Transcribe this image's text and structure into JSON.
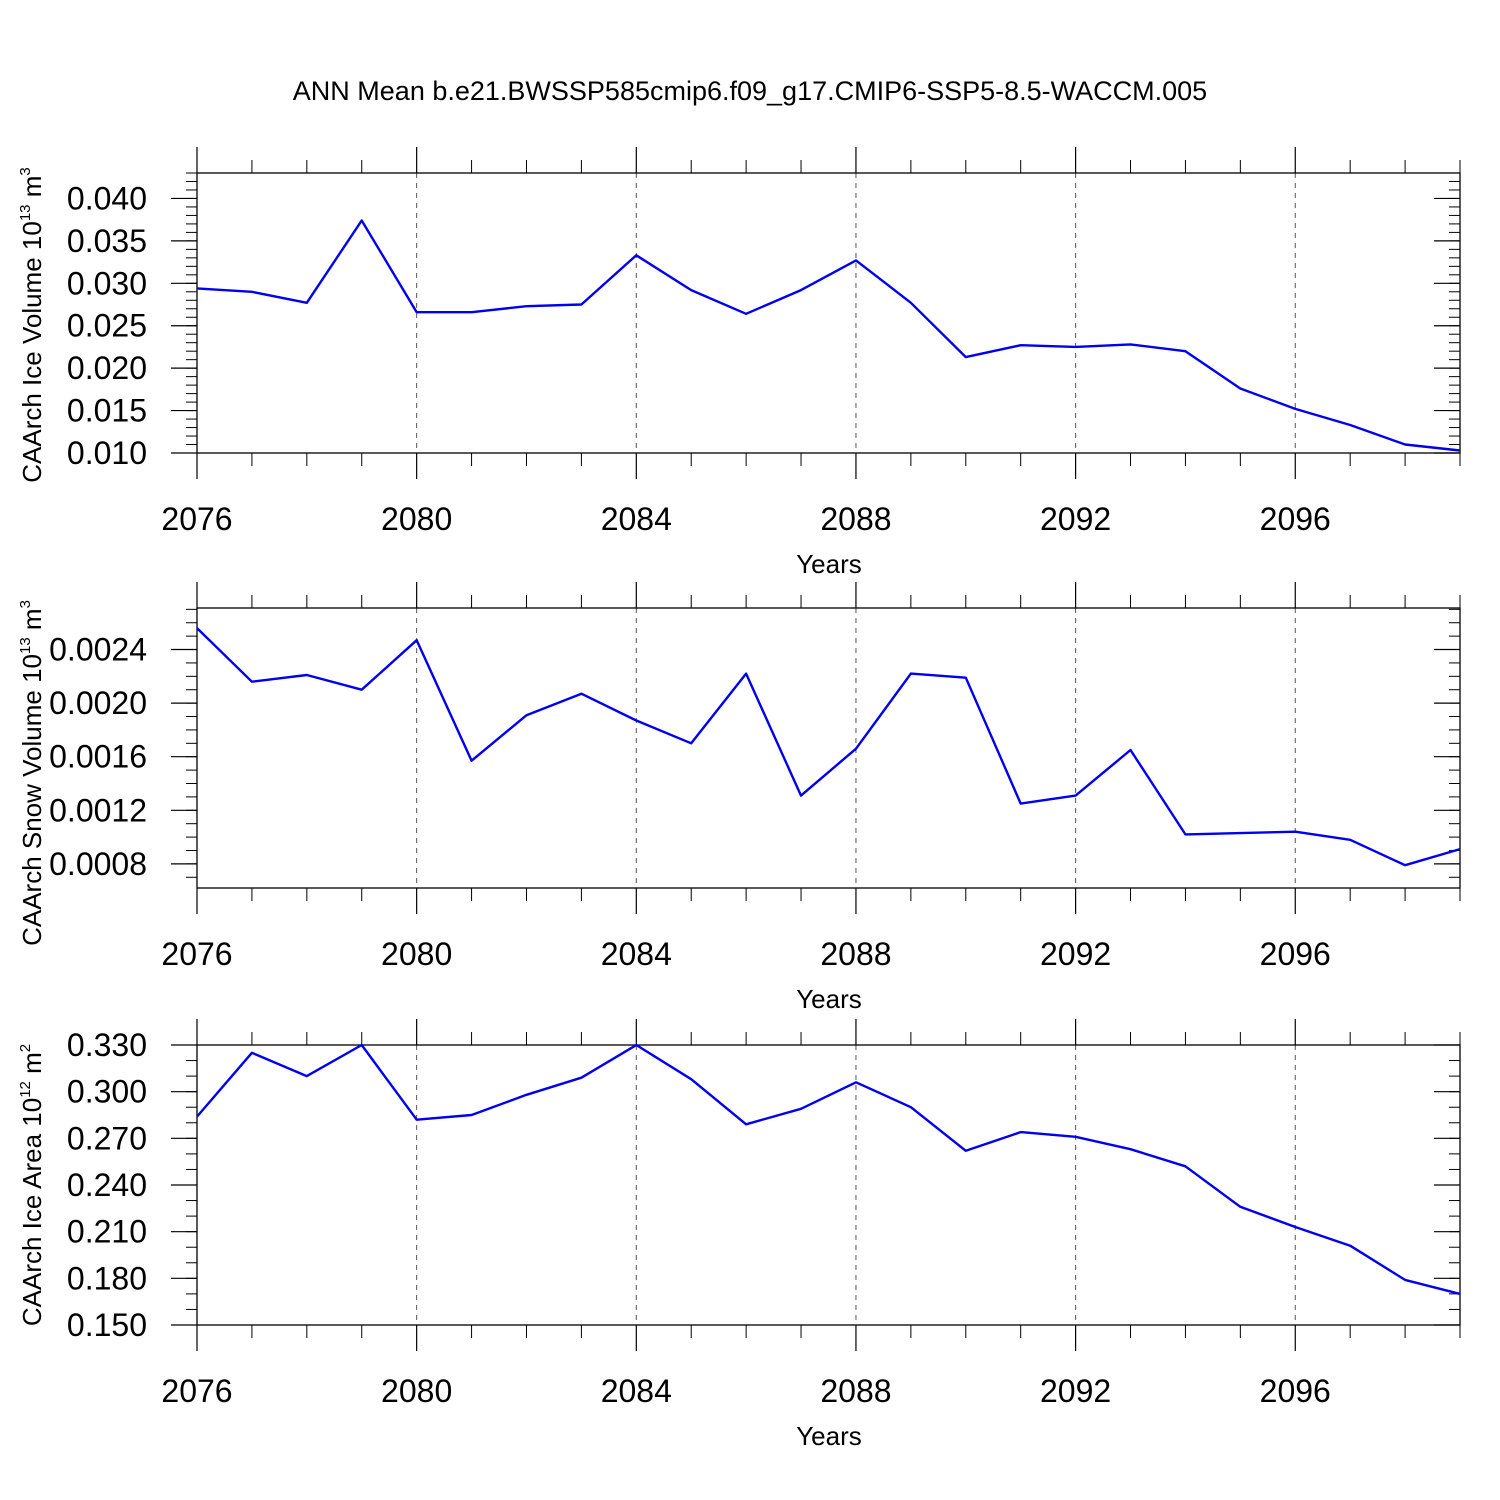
{
  "title": "ANN Mean b.e21.BWSSP585cmip6.f09_g17.CMIP6-SSP5-8.5-WACCM.005",
  "colors": {
    "series": "#0000ee",
    "axis": "#000000",
    "grid": "#555555"
  },
  "chart_data": [
    {
      "type": "line",
      "xlabel": "Years",
      "ylabel": {
        "base": "CAArch Ice Volume 10",
        "exp": "13",
        "unit": " m",
        "unit_exp": "3"
      },
      "x": [
        2076,
        2077,
        2078,
        2079,
        2080,
        2081,
        2082,
        2083,
        2084,
        2085,
        2086,
        2087,
        2088,
        2089,
        2090,
        2091,
        2092,
        2093,
        2094,
        2095,
        2096,
        2097,
        2098,
        2099
      ],
      "values": [
        0.0294,
        0.029,
        0.0277,
        0.0374,
        0.0266,
        0.0266,
        0.0273,
        0.0275,
        0.0333,
        0.0292,
        0.0264,
        0.0292,
        0.0327,
        0.0277,
        0.0213,
        0.0227,
        0.0225,
        0.0228,
        0.022,
        0.0176,
        0.0152,
        0.0133,
        0.011,
        0.0103
      ],
      "xlim": [
        2076,
        2099
      ],
      "ylim": [
        0.01,
        0.043
      ],
      "yticks": [
        0.01,
        0.015,
        0.02,
        0.025,
        0.03,
        0.035,
        0.04
      ],
      "ytick_labels": [
        "0.010",
        "0.015",
        "0.020",
        "0.025",
        "0.030",
        "0.035",
        "0.040"
      ],
      "xticks": [
        2076,
        2080,
        2084,
        2088,
        2092,
        2096
      ],
      "xtick_labels": [
        "2076",
        "2080",
        "2084",
        "2088",
        "2092",
        "2096"
      ],
      "grid": "vertical dashed at major x ticks"
    },
    {
      "type": "line",
      "xlabel": "Years",
      "ylabel": {
        "base": "CAArch Snow Volume 10",
        "exp": "13",
        "unit": " m",
        "unit_exp": "3"
      },
      "x": [
        2076,
        2077,
        2078,
        2079,
        2080,
        2081,
        2082,
        2083,
        2084,
        2085,
        2086,
        2087,
        2088,
        2089,
        2090,
        2091,
        2092,
        2093,
        2094,
        2095,
        2096,
        2097,
        2098,
        2099
      ],
      "values": [
        0.00256,
        0.00216,
        0.00221,
        0.0021,
        0.00247,
        0.00157,
        0.00191,
        0.00207,
        0.00187,
        0.0017,
        0.00222,
        0.00131,
        0.00166,
        0.00222,
        0.00219,
        0.00125,
        0.00131,
        0.00165,
        0.00102,
        0.00103,
        0.00104,
        0.00098,
        0.00079,
        0.00091
      ],
      "xlim": [
        2076,
        2099
      ],
      "ylim": [
        0.00062,
        0.00271
      ],
      "yticks": [
        0.0008,
        0.0012,
        0.0016,
        0.002,
        0.0024
      ],
      "ytick_labels": [
        "0.0008",
        "0.0012",
        "0.0016",
        "0.0020",
        "0.0024"
      ],
      "xticks": [
        2076,
        2080,
        2084,
        2088,
        2092,
        2096
      ],
      "xtick_labels": [
        "2076",
        "2080",
        "2084",
        "2088",
        "2092",
        "2096"
      ],
      "grid": "vertical dashed at major x ticks"
    },
    {
      "type": "line",
      "xlabel": "Years",
      "ylabel": {
        "base": "CAArch Ice Area 10",
        "exp": "12",
        "unit": " m",
        "unit_exp": "2"
      },
      "x": [
        2076,
        2077,
        2078,
        2079,
        2080,
        2081,
        2082,
        2083,
        2084,
        2085,
        2086,
        2087,
        2088,
        2089,
        2090,
        2091,
        2092,
        2093,
        2094,
        2095,
        2096,
        2097,
        2098,
        2099
      ],
      "values": [
        0.284,
        0.325,
        0.31,
        0.33,
        0.282,
        0.285,
        0.298,
        0.309,
        0.33,
        0.308,
        0.279,
        0.289,
        0.306,
        0.29,
        0.262,
        0.274,
        0.271,
        0.263,
        0.252,
        0.226,
        0.213,
        0.201,
        0.179,
        0.17
      ],
      "xlim": [
        2076,
        2099
      ],
      "ylim": [
        0.15,
        0.33
      ],
      "yticks": [
        0.15,
        0.18,
        0.21,
        0.24,
        0.27,
        0.3,
        0.33
      ],
      "ytick_labels": [
        "0.150",
        "0.180",
        "0.210",
        "0.240",
        "0.270",
        "0.300",
        "0.330"
      ],
      "xticks": [
        2076,
        2080,
        2084,
        2088,
        2092,
        2096
      ],
      "xtick_labels": [
        "2076",
        "2080",
        "2084",
        "2088",
        "2092",
        "2096"
      ],
      "grid": "vertical dashed at major x ticks"
    }
  ]
}
